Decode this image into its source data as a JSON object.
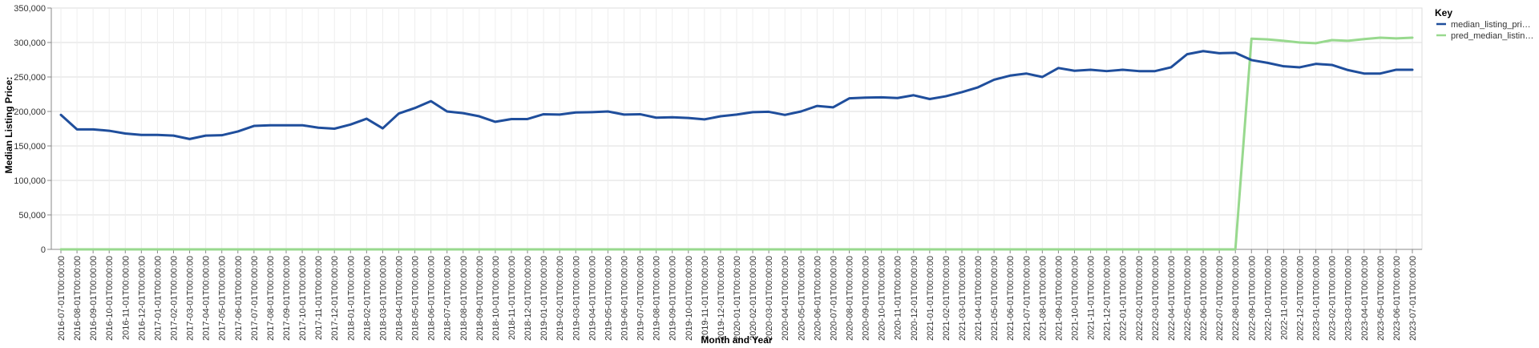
{
  "chart_data": {
    "type": "line",
    "xlabel": "Month and Year",
    "ylabel": "Median Listing Price:",
    "ylim": [
      0,
      350000
    ],
    "y_ticks": [
      0,
      50000,
      100000,
      150000,
      200000,
      250000,
      300000,
      350000
    ],
    "y_tick_labels": [
      "0",
      "50,000",
      "100,000",
      "150,000",
      "200,000",
      "250,000",
      "300,000",
      "350,000"
    ],
    "grid": true,
    "legend": {
      "title": "Key",
      "position": "top-right",
      "entries": [
        "median_listing_pri…",
        "pred_median_listin…"
      ]
    },
    "x": [
      "2016-07-01T00:00:00",
      "2016-08-01T00:00:00",
      "2016-09-01T00:00:00",
      "2016-10-01T00:00:00",
      "2016-11-01T00:00:00",
      "2016-12-01T00:00:00",
      "2017-01-01T00:00:00",
      "2017-02-01T00:00:00",
      "2017-03-01T00:00:00",
      "2017-04-01T00:00:00",
      "2017-05-01T00:00:00",
      "2017-06-01T00:00:00",
      "2017-07-01T00:00:00",
      "2017-08-01T00:00:00",
      "2017-09-01T00:00:00",
      "2017-10-01T00:00:00",
      "2017-11-01T00:00:00",
      "2017-12-01T00:00:00",
      "2018-01-01T00:00:00",
      "2018-02-01T00:00:00",
      "2018-03-01T00:00:00",
      "2018-04-01T00:00:00",
      "2018-05-01T00:00:00",
      "2018-06-01T00:00:00",
      "2018-07-01T00:00:00",
      "2018-08-01T00:00:00",
      "2018-09-01T00:00:00",
      "2018-10-01T00:00:00",
      "2018-11-01T00:00:00",
      "2018-12-01T00:00:00",
      "2019-01-01T00:00:00",
      "2019-02-01T00:00:00",
      "2019-03-01T00:00:00",
      "2019-04-01T00:00:00",
      "2019-05-01T00:00:00",
      "2019-06-01T00:00:00",
      "2019-07-01T00:00:00",
      "2019-08-01T00:00:00",
      "2019-09-01T00:00:00",
      "2019-10-01T00:00:00",
      "2019-11-01T00:00:00",
      "2019-12-01T00:00:00",
      "2020-01-01T00:00:00",
      "2020-02-01T00:00:00",
      "2020-03-01T00:00:00",
      "2020-04-01T00:00:00",
      "2020-05-01T00:00:00",
      "2020-06-01T00:00:00",
      "2020-07-01T00:00:00",
      "2020-08-01T00:00:00",
      "2020-09-01T00:00:00",
      "2020-10-01T00:00:00",
      "2020-11-01T00:00:00",
      "2020-12-01T00:00:00",
      "2021-01-01T00:00:00",
      "2021-02-01T00:00:00",
      "2021-03-01T00:00:00",
      "2021-04-01T00:00:00",
      "2021-05-01T00:00:00",
      "2021-06-01T00:00:00",
      "2021-07-01T00:00:00",
      "2021-08-01T00:00:00",
      "2021-09-01T00:00:00",
      "2021-10-01T00:00:00",
      "2021-11-01T00:00:00",
      "2021-12-01T00:00:00",
      "2022-01-01T00:00:00",
      "2022-02-01T00:00:00",
      "2022-03-01T00:00:00",
      "2022-04-01T00:00:00",
      "2022-05-01T00:00:00",
      "2022-06-01T00:00:00",
      "2022-07-01T00:00:00",
      "2022-08-01T00:00:00",
      "2022-09-01T00:00:00",
      "2022-10-01T00:00:00",
      "2022-11-01T00:00:00",
      "2022-12-01T00:00:00",
      "2023-01-01T00:00:00",
      "2023-02-01T00:00:00",
      "2023-03-01T00:00:00",
      "2023-04-01T00:00:00",
      "2023-05-01T00:00:00",
      "2023-06-01T00:00:00",
      "2023-07-01T00:00:00"
    ],
    "series": [
      {
        "name": "median_listing_pri…",
        "color": "#1f4e9c",
        "values": [
          195000,
          174000,
          174000,
          172000,
          168000,
          166000,
          166000,
          165000,
          160000,
          165000,
          165500,
          171000,
          179000,
          180000,
          180000,
          180000,
          176500,
          175000,
          181000,
          189500,
          175500,
          197000,
          205000,
          215000,
          200000,
          197500,
          193000,
          185000,
          189000,
          189000,
          196000,
          195500,
          198500,
          199000,
          200000,
          195500,
          196000,
          191000,
          191500,
          190500,
          188500,
          193000,
          195500,
          199000,
          199500,
          195000,
          200000,
          208000,
          206000,
          219000,
          220000,
          220500,
          219500,
          223500,
          218000,
          222000,
          228000,
          235000,
          246000,
          252000,
          255000,
          250000,
          263000,
          259000,
          260500,
          258500,
          260500,
          258500,
          258500,
          264000,
          283000,
          287500,
          284500,
          285000,
          274500,
          270500,
          265500,
          264000,
          269000,
          267500,
          260000,
          255000,
          255000,
          260500,
          260500
        ]
      },
      {
        "name": "pred_median_listin…",
        "color": "#98d98e",
        "values": [
          0,
          0,
          0,
          0,
          0,
          0,
          0,
          0,
          0,
          0,
          0,
          0,
          0,
          0,
          0,
          0,
          0,
          0,
          0,
          0,
          0,
          0,
          0,
          0,
          0,
          0,
          0,
          0,
          0,
          0,
          0,
          0,
          0,
          0,
          0,
          0,
          0,
          0,
          0,
          0,
          0,
          0,
          0,
          0,
          0,
          0,
          0,
          0,
          0,
          0,
          0,
          0,
          0,
          0,
          0,
          0,
          0,
          0,
          0,
          0,
          0,
          0,
          0,
          0,
          0,
          0,
          0,
          0,
          0,
          0,
          0,
          0,
          0,
          0,
          305500,
          304500,
          302500,
          300000,
          299000,
          303500,
          302500,
          305000,
          307000,
          306000,
          307000
        ]
      }
    ]
  }
}
